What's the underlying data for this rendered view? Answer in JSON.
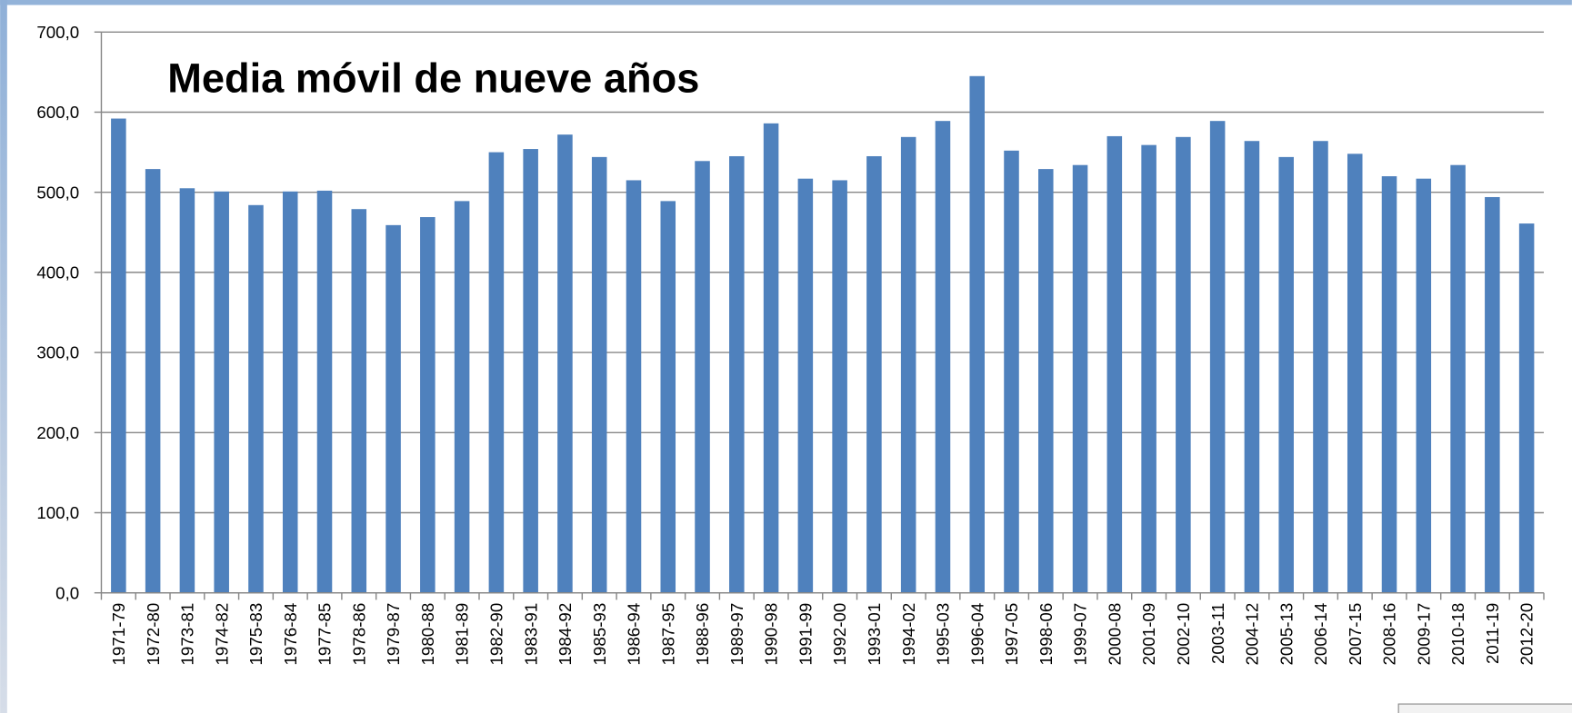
{
  "chart_data": {
    "type": "bar",
    "title": "Media móvil de nueve años",
    "categories": [
      "1971-79",
      "1972-80",
      "1973-81",
      "1974-82",
      "1975-83",
      "1976-84",
      "1977-85",
      "1978-86",
      "1979-87",
      "1980-88",
      "1981-89",
      "1982-90",
      "1983-91",
      "1984-92",
      "1985-93",
      "1986-94",
      "1987-95",
      "1988-96",
      "1989-97",
      "1990-98",
      "1991-99",
      "1992-00",
      "1993-01",
      "1994-02",
      "1995-03",
      "1996-04",
      "1997-05",
      "1998-06",
      "1999-07",
      "2000-08",
      "2001-09",
      "2002-10",
      "2003-11",
      "2004-12",
      "2005-13",
      "2006-14",
      "2007-15",
      "2008-16",
      "2009-17",
      "2010-18",
      "2011-19",
      "2012-20"
    ],
    "values": [
      592,
      529,
      505,
      501,
      484,
      501,
      502,
      479,
      459,
      469,
      489,
      550,
      554,
      572,
      544,
      515,
      489,
      539,
      545,
      586,
      517,
      515,
      545,
      569,
      589,
      645,
      552,
      529,
      534,
      570,
      559,
      569,
      589,
      564,
      544,
      564,
      548,
      520,
      517,
      534,
      494,
      461
    ],
    "color": "#4f81bd",
    "ylim": [
      0,
      700
    ],
    "yticks": [
      {
        "value": 0,
        "label": "0,0"
      },
      {
        "value": 100,
        "label": "100,0"
      },
      {
        "value": 200,
        "label": "200,0"
      },
      {
        "value": 300,
        "label": "300,0"
      },
      {
        "value": 400,
        "label": "400,0"
      },
      {
        "value": 500,
        "label": "500,0"
      },
      {
        "value": 600,
        "label": "600,0"
      },
      {
        "value": 700,
        "label": "700,0"
      }
    ],
    "grid": true
  }
}
